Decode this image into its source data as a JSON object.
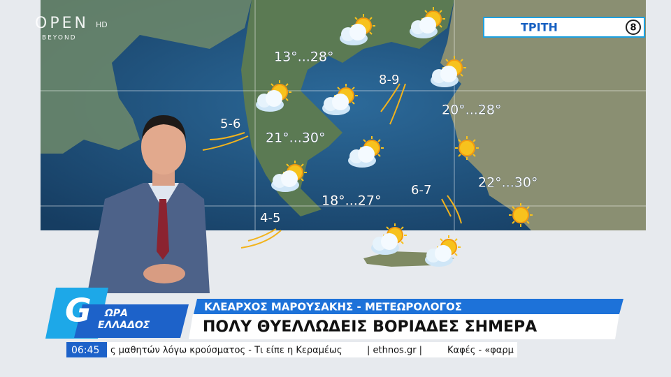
{
  "channel": {
    "logo": "OPEN",
    "sub": "BEYOND",
    "hd": "HD"
  },
  "day": {
    "label": "ΤΡΙΤΗ",
    "number": 8
  },
  "map": {
    "temperatures": [
      "13°...28°",
      "21°...30°",
      "18°...27°",
      "20°...28°",
      "22°...30°"
    ],
    "winds": [
      "5-6",
      "8-9",
      "4-5",
      "6-7"
    ]
  },
  "show": {
    "title_top": "ΩΡΑ",
    "title_bottom": "ΕΛΛΑΔΟΣ"
  },
  "lower_third": {
    "name": "ΚΛΕΑΡΧΟΣ ΜΑΡΟΥΣΑΚΗΣ - ΜΕΤΕΩΡΟΛΟΓΟΣ",
    "headline": "ΠΟΛΥ ΘΥΕΛΛΩΔΕΙΣ ΒΟΡΙΑΔΕΣ ΣΗΜΕΡΑ"
  },
  "ticker": {
    "time": "06:45",
    "items": [
      "ς μαθητών λόγω κρούσματος - Τι είπε η Κεραμέως",
      "| ethnos.gr |",
      "Καφές - «φαρμ"
    ]
  }
}
